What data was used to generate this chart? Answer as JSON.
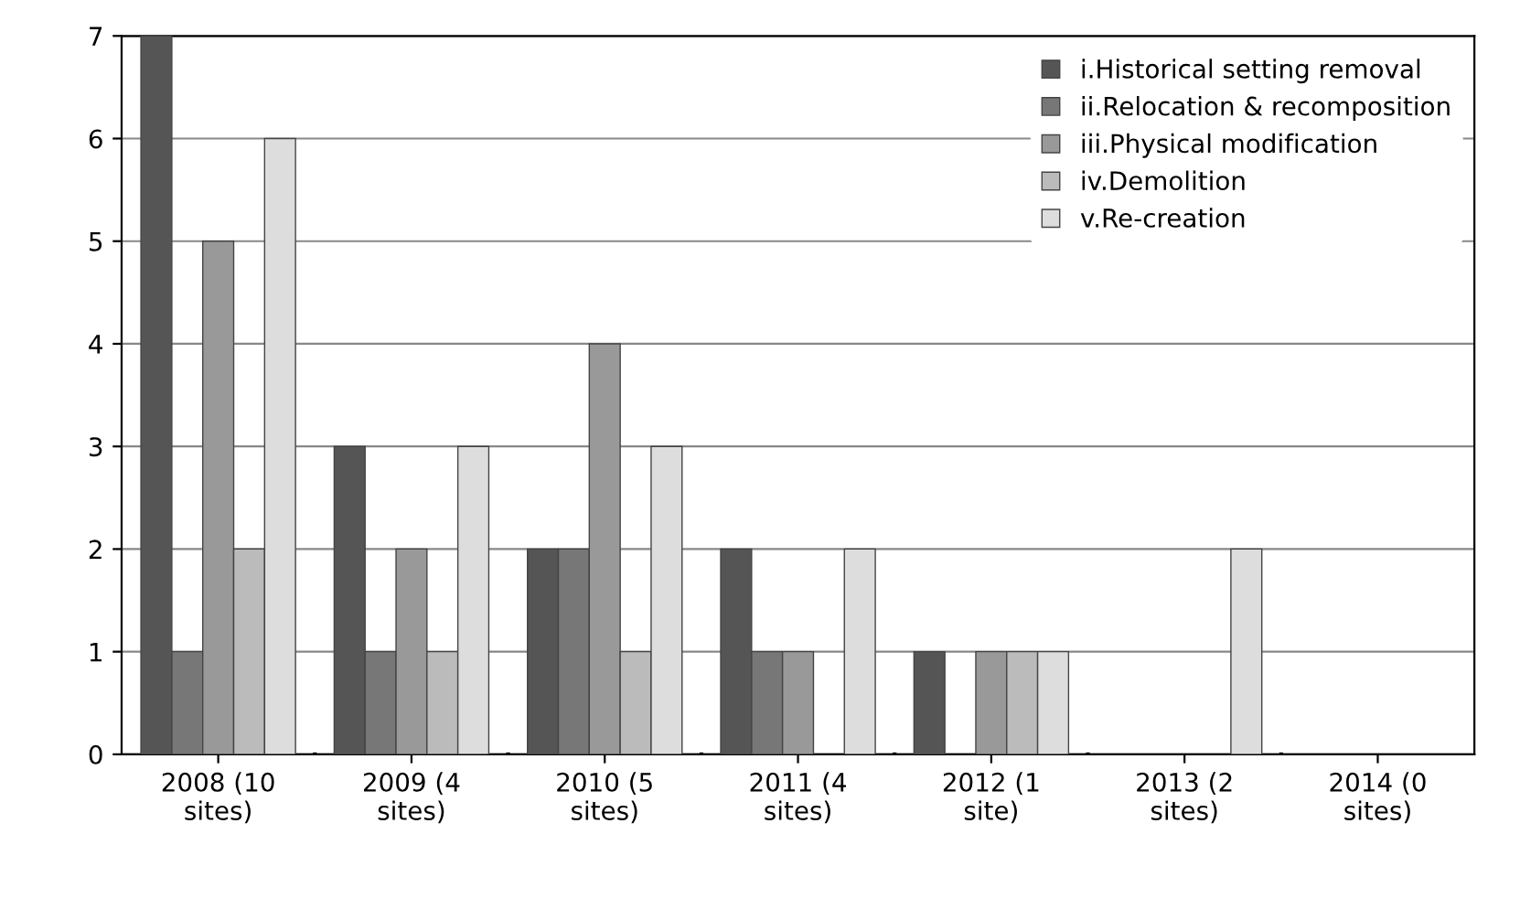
{
  "chart_data": {
    "type": "bar",
    "categories": [
      "2008 (10 sites)",
      "2009 (4 sites)",
      "2010 (5 sites)",
      "2011 (4 sites)",
      "2012 (1 site)",
      "2013 (2 sites)",
      "2014 (0 sites)"
    ],
    "series": [
      {
        "name": "i.Historical setting removal",
        "color": "#555555",
        "values": [
          7,
          3,
          2,
          2,
          1,
          0,
          0
        ]
      },
      {
        "name": "ii.Relocation & recomposition",
        "color": "#777777",
        "values": [
          1,
          1,
          2,
          1,
          0,
          0,
          0
        ]
      },
      {
        "name": "iii.Physical modification",
        "color": "#999999",
        "values": [
          5,
          2,
          4,
          1,
          1,
          0,
          0
        ]
      },
      {
        "name": "iv.Demolition",
        "color": "#bbbbbb",
        "values": [
          2,
          1,
          1,
          0,
          1,
          0,
          0
        ]
      },
      {
        "name": "v.Re-creation",
        "color": "#dddddd",
        "values": [
          6,
          3,
          3,
          2,
          1,
          2,
          0
        ]
      }
    ],
    "ylim": [
      0,
      7
    ],
    "yticks": [
      0,
      1,
      2,
      3,
      4,
      5,
      6,
      7
    ],
    "grid": "y",
    "legend": "top right"
  }
}
